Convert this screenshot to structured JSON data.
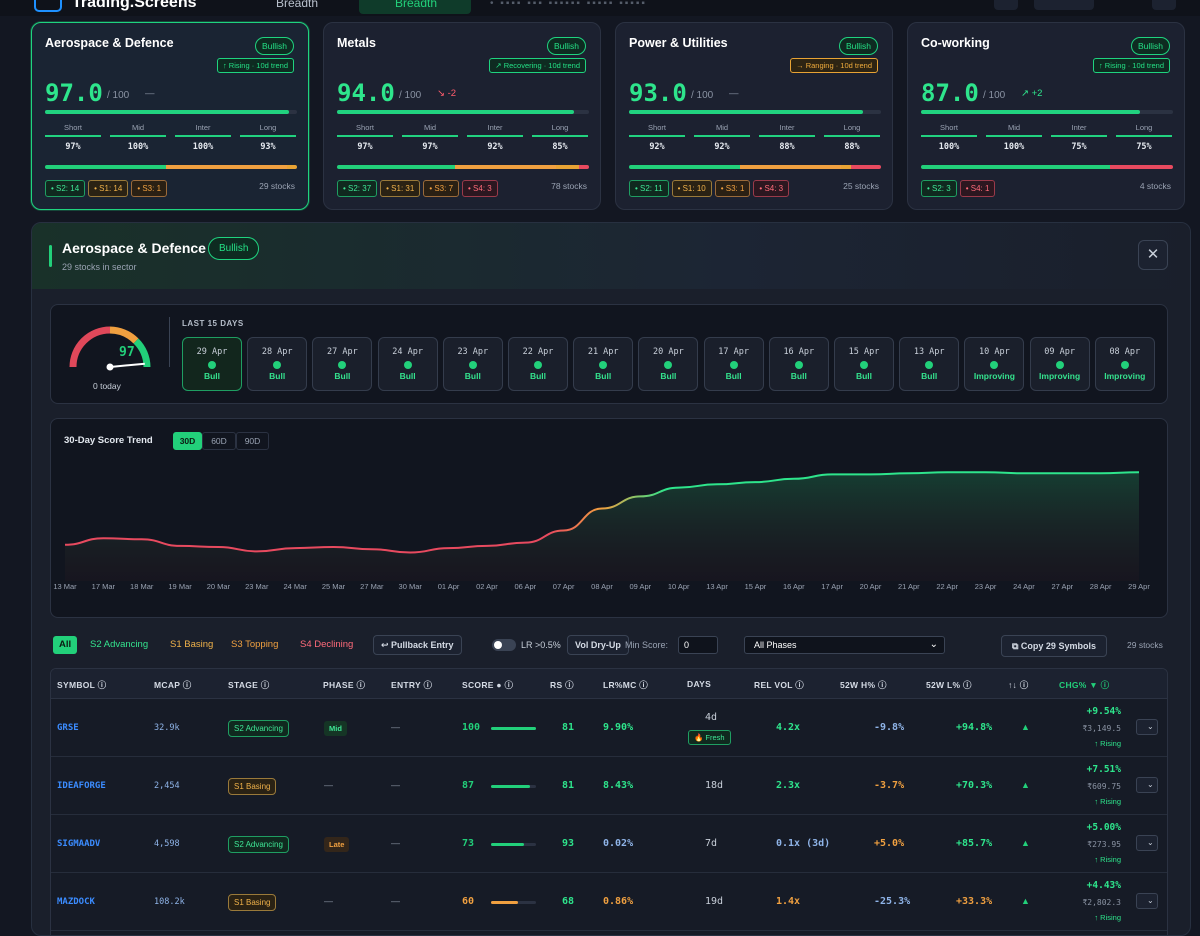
{
  "topbar": {
    "brand": "Trading.Screens",
    "nav_breadth": "Breadth",
    "nav_breadth_active": "Breadth"
  },
  "cards": [
    {
      "name": "Aerospace & Defence",
      "badge": "Bullish",
      "trend": "↑ Rising · 10d trend",
      "trend_kind": "green",
      "score": "97.0",
      "of": "/ 100",
      "delta": "—",
      "delta_color": "#8a93a3",
      "score_fill": 0.97,
      "horizons": [
        {
          "label": "Short",
          "value": "97%"
        },
        {
          "label": "Mid",
          "value": "100%"
        },
        {
          "label": "Inter",
          "value": "100%"
        },
        {
          "label": "Long",
          "value": "93%"
        }
      ],
      "stack": [
        0.48,
        0.48,
        0.04,
        0
      ],
      "chips": [
        {
          "kind": "s2",
          "label": "• S2: 14"
        },
        {
          "kind": "s1",
          "label": "• S1: 14"
        },
        {
          "kind": "s3",
          "label": "• S3: 1"
        }
      ],
      "count": "29 stocks",
      "selected": true
    },
    {
      "name": "Metals",
      "badge": "Bullish",
      "trend": "↗ Recovering · 10d trend",
      "trend_kind": "green",
      "score": "94.0",
      "of": "/ 100",
      "delta": "↘ -2",
      "delta_color": "#ff5c6c",
      "score_fill": 0.94,
      "horizons": [
        {
          "label": "Short",
          "value": "97%"
        },
        {
          "label": "Mid",
          "value": "97%"
        },
        {
          "label": "Inter",
          "value": "92%"
        },
        {
          "label": "Long",
          "value": "85%"
        }
      ],
      "stack": [
        0.47,
        0.4,
        0.09,
        0.04
      ],
      "chips": [
        {
          "kind": "s2",
          "label": "• S2: 37"
        },
        {
          "kind": "s1",
          "label": "• S1: 31"
        },
        {
          "kind": "s3",
          "label": "• S3: 7"
        },
        {
          "kind": "s4",
          "label": "• S4: 3"
        }
      ],
      "count": "78 stocks",
      "selected": false
    },
    {
      "name": "Power & Utilities",
      "badge": "Bullish",
      "trend": "→ Ranging · 10d trend",
      "trend_kind": "amber",
      "score": "93.0",
      "of": "/ 100",
      "delta": "—",
      "delta_color": "#8a93a3",
      "score_fill": 0.93,
      "horizons": [
        {
          "label": "Short",
          "value": "92%"
        },
        {
          "label": "Mid",
          "value": "92%"
        },
        {
          "label": "Inter",
          "value": "88%"
        },
        {
          "label": "Long",
          "value": "88%"
        }
      ],
      "stack": [
        0.44,
        0.4,
        0.04,
        0.12
      ],
      "chips": [
        {
          "kind": "s2",
          "label": "• S2: 11"
        },
        {
          "kind": "s1",
          "label": "• S1: 10"
        },
        {
          "kind": "s3",
          "label": "• S3: 1"
        },
        {
          "kind": "s4",
          "label": "• S4: 3"
        }
      ],
      "count": "25 stocks",
      "selected": false
    },
    {
      "name": "Co-working",
      "badge": "Bullish",
      "trend": "↑ Rising · 10d trend",
      "trend_kind": "green",
      "score": "87.0",
      "of": "/ 100",
      "delta": "↗ +2",
      "delta_color": "#2ee58c",
      "score_fill": 0.87,
      "horizons": [
        {
          "label": "Short",
          "value": "100%"
        },
        {
          "label": "Mid",
          "value": "100%"
        },
        {
          "label": "Inter",
          "value": "75%"
        },
        {
          "label": "Long",
          "value": "75%"
        }
      ],
      "stack": [
        0.75,
        0,
        0,
        0.25
      ],
      "chips": [
        {
          "kind": "s2",
          "label": "• S2: 3"
        },
        {
          "kind": "s4",
          "label": "• S4: 1"
        }
      ],
      "count": "4 stocks",
      "selected": false
    }
  ],
  "panel": {
    "title": "Aerospace & Defence",
    "badge": "Bullish",
    "subtitle": "29 stocks in sector",
    "close": "✕"
  },
  "gauge": {
    "value": "97",
    "today": "0 today",
    "fill": 0.97,
    "heading": "LAST 15 DAYS"
  },
  "days": [
    {
      "d": "29 Apr",
      "s": "Bull"
    },
    {
      "d": "28 Apr",
      "s": "Bull"
    },
    {
      "d": "27 Apr",
      "s": "Bull"
    },
    {
      "d": "24 Apr",
      "s": "Bull"
    },
    {
      "d": "23 Apr",
      "s": "Bull"
    },
    {
      "d": "22 Apr",
      "s": "Bull"
    },
    {
      "d": "21 Apr",
      "s": "Bull"
    },
    {
      "d": "20 Apr",
      "s": "Bull"
    },
    {
      "d": "17 Apr",
      "s": "Bull"
    },
    {
      "d": "16 Apr",
      "s": "Bull"
    },
    {
      "d": "15 Apr",
      "s": "Bull"
    },
    {
      "d": "13 Apr",
      "s": "Bull"
    },
    {
      "d": "10 Apr",
      "s": "Improving"
    },
    {
      "d": "09 Apr",
      "s": "Improving"
    },
    {
      "d": "08 Apr",
      "s": "Improving"
    }
  ],
  "chart_title": "30-Day Score Trend",
  "ranges": [
    "30D",
    "60D",
    "90D"
  ],
  "chart_data": {
    "type": "line",
    "title": "30-Day Score Trend",
    "x": [
      "13 Mar",
      "17 Mar",
      "18 Mar",
      "19 Mar",
      "20 Mar",
      "23 Mar",
      "24 Mar",
      "25 Mar",
      "27 Mar",
      "30 Mar",
      "01 Apr",
      "02 Apr",
      "06 Apr",
      "07 Apr",
      "08 Apr",
      "09 Apr",
      "10 Apr",
      "13 Apr",
      "15 Apr",
      "16 Apr",
      "17 Apr",
      "20 Apr",
      "21 Apr",
      "22 Apr",
      "23 Apr",
      "24 Apr",
      "27 Apr",
      "28 Apr",
      "29 Apr"
    ],
    "values": [
      22,
      28,
      27,
      21,
      20,
      16,
      19,
      20,
      18,
      15,
      19,
      21,
      24,
      35,
      55,
      66,
      74,
      77,
      79,
      82,
      86,
      86,
      87,
      88,
      88,
      87,
      87,
      87,
      88
    ],
    "ylim": [
      0,
      100
    ],
    "grid": false
  },
  "filters": {
    "tabs": [
      "All",
      "S2 Advancing",
      "S1 Basing",
      "S3 Topping",
      "S4 Declining"
    ],
    "pullback": "↩ Pullback Entry",
    "lr": "LR >0.5%",
    "voldry": "Vol Dry-Up",
    "minscore_label": "Min Score:",
    "minscore": "0",
    "phases": "All Phases",
    "copy": "⧉ Copy 29 Symbols",
    "count": "29 stocks"
  },
  "columns": [
    "SYMBOL ⓘ",
    "MCAP ⓘ",
    "STAGE ⓘ",
    "PHASE ⓘ",
    "ENTRY ⓘ",
    "SCORE ● ⓘ",
    "RS ⓘ",
    "LR%MC ⓘ",
    "DAYS",
    "REL VOL ⓘ",
    "52W H% ⓘ",
    "52W L% ⓘ",
    "↑↓ ⓘ",
    "CHG% ▼ ⓘ"
  ],
  "rows": [
    {
      "sym": "GRSE",
      "mcap": "32.9k",
      "stage": "S2 Advancing",
      "stage_kind": "s2",
      "phase": "Mid",
      "phase_kind": "mid",
      "entry": "—",
      "score": "100",
      "score_fill": 1.0,
      "score_color": "#22d07a",
      "rs": "81",
      "lr": "9.90%",
      "lr_color": "#2ee58c",
      "days": "4d",
      "fresh": "🔥 Fresh",
      "relvol": "4.2x",
      "relvol_color": "#2ee58c",
      "h52": "-9.8%",
      "h52_color": "#8fb4e8",
      "l52": "+94.8%",
      "l52_color": "#2ee58c",
      "arrow": "▲",
      "chg": "+9.54%",
      "price": "₹3,149.5",
      "rising": "↑ Rising"
    },
    {
      "sym": "IDEAFORGE",
      "mcap": "2,454",
      "stage": "S1 Basing",
      "stage_kind": "s1",
      "phase": "—",
      "phase_kind": "",
      "entry": "—",
      "score": "87",
      "score_fill": 0.87,
      "score_color": "#22d07a",
      "rs": "81",
      "lr": "8.43%",
      "lr_color": "#2ee58c",
      "days": "18d",
      "fresh": "",
      "relvol": "2.3x",
      "relvol_color": "#2ee58c",
      "h52": "-3.7%",
      "h52_color": "#f0a040",
      "l52": "+70.3%",
      "l52_color": "#2ee58c",
      "arrow": "▲",
      "chg": "+7.51%",
      "price": "₹609.75",
      "rising": "↑ Rising"
    },
    {
      "sym": "SIGMAADV",
      "mcap": "4,598",
      "stage": "S2 Advancing",
      "stage_kind": "s2",
      "phase": "Late",
      "phase_kind": "late",
      "entry": "—",
      "score": "73",
      "score_fill": 0.73,
      "score_color": "#22d07a",
      "rs": "93",
      "lr": "0.02%",
      "lr_color": "#8fb4e8",
      "days": "7d",
      "fresh": "",
      "relvol": "0.1x (3d)",
      "relvol_color": "#8fb4e8",
      "h52": "+5.0%",
      "h52_color": "#f0a040",
      "l52": "+85.7%",
      "l52_color": "#2ee58c",
      "arrow": "▲",
      "chg": "+5.00%",
      "price": "₹273.95",
      "rising": "↑ Rising"
    },
    {
      "sym": "MAZDOCK",
      "mcap": "108.2k",
      "stage": "S1 Basing",
      "stage_kind": "s1",
      "phase": "—",
      "phase_kind": "",
      "entry": "—",
      "score": "60",
      "score_fill": 0.6,
      "score_color": "#f0a040",
      "rs": "68",
      "lr": "0.86%",
      "lr_color": "#f0a040",
      "days": "19d",
      "fresh": "",
      "relvol": "1.4x",
      "relvol_color": "#f0a040",
      "h52": "-25.3%",
      "h52_color": "#8fb4e8",
      "l52": "+33.3%",
      "l52_color": "#f0a040",
      "arrow": "▲",
      "chg": "+4.43%",
      "price": "₹2,802.3",
      "rising": "↑ Rising"
    }
  ]
}
